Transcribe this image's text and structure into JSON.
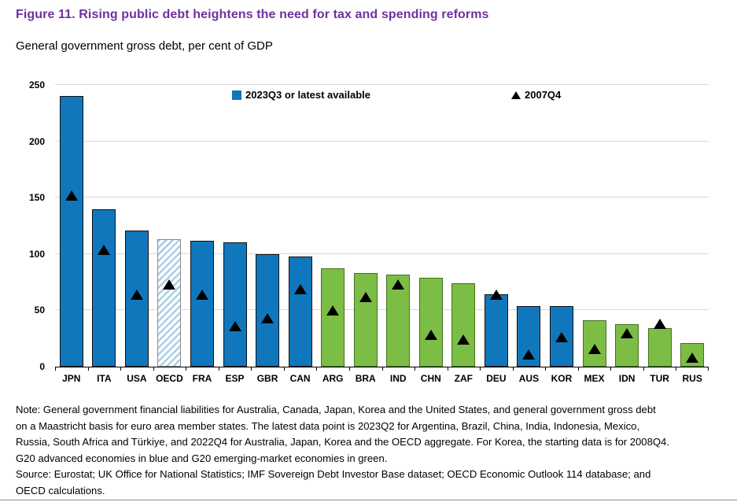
{
  "header": {
    "figure_title": "Figure 11. Rising public debt heightens the need for tax and spending reforms",
    "subtitle": "General government gross debt, per cent of GDP"
  },
  "legend": {
    "bar_label": "2023Q3 or latest available",
    "marker_label": "2007Q4"
  },
  "chart_data": {
    "type": "bar",
    "title": "General government gross debt, per cent of GDP",
    "xlabel": "",
    "ylabel": "",
    "ylim": [
      0,
      250
    ],
    "yticks": [
      0,
      50,
      100,
      150,
      200,
      250
    ],
    "grid": true,
    "legend_position": "top-inside",
    "categories": [
      "JPN",
      "ITA",
      "USA",
      "OECD",
      "FRA",
      "ESP",
      "GBR",
      "CAN",
      "ARG",
      "BRA",
      "IND",
      "CHN",
      "ZAF",
      "DEU",
      "AUS",
      "KOR",
      "MEX",
      "IDN",
      "TUR",
      "RUS"
    ],
    "series": [
      {
        "name": "2023Q3 or latest available",
        "type": "bar",
        "values": [
          240,
          140,
          121,
          113,
          112,
          110,
          100,
          98,
          87,
          83,
          82,
          79,
          74,
          64,
          54,
          54,
          41,
          38,
          34,
          21
        ]
      },
      {
        "name": "2007Q4",
        "type": "scatter-triangle",
        "values": [
          152,
          104,
          64,
          73,
          64,
          36,
          43,
          69,
          50,
          62,
          73,
          28,
          24,
          64,
          11,
          26,
          16,
          30,
          38,
          8
        ]
      }
    ],
    "bar_styles": [
      "blue",
      "blue",
      "blue",
      "hatched",
      "blue",
      "blue",
      "blue",
      "blue",
      "green",
      "green",
      "green",
      "green",
      "green",
      "blue",
      "blue",
      "blue",
      "green",
      "green",
      "green",
      "green"
    ],
    "group_meaning": {
      "blue": "G20 advanced economies",
      "green": "G20 emerging-market economies",
      "hatched": "OECD aggregate"
    }
  },
  "colors": {
    "title_purple": "#7030A0",
    "advanced_blue": "#1077BC",
    "emerging_green": "#7CBE45",
    "hatch_light_blue": "#A9CFE8",
    "blue_border": "#111111",
    "green_border": "#44701F",
    "hatch_border": "#8A8A8A",
    "marker_black": "#000000",
    "grid_gray": "#D9D9D9"
  },
  "note": {
    "lines": [
      "Note: General government financial liabilities for Australia, Canada, Japan, Korea and the United States, and general government gross debt",
      "on a Maastricht basis for euro area member states. The latest data point is 2023Q2 for Argentina, Brazil, China, India, Indonesia, Mexico,",
      "Russia, South Africa and Türkiye, and 2022Q4 for Australia, Japan, Korea and the OECD aggregate. For Korea, the starting data is for 2008Q4.",
      "G20 advanced economies in blue and G20 emerging-market economies in green."
    ]
  },
  "source": {
    "lines": [
      "Source: Eurostat; UK Office for National Statistics; IMF Sovereign Debt Investor Base dataset; OECD Economic Outlook 114 database; and",
      "OECD calculations."
    ]
  }
}
